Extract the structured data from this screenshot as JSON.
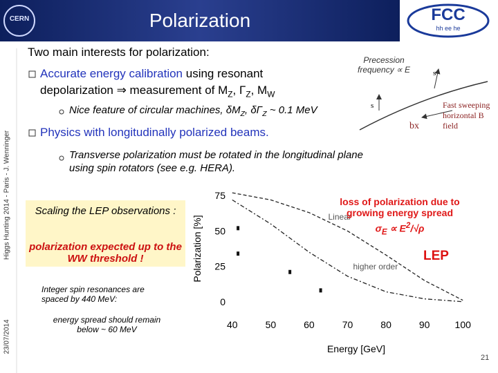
{
  "header": {
    "title": "Polarization",
    "logo_left": "CERN",
    "logo_right": "FCC",
    "logo_right_sub": "hh ee he"
  },
  "sidebar": {
    "event": "Higgs Hunting 2014 - Paris - J. Wenninger",
    "date": "23/07/2014"
  },
  "intro": "Two main interests for polarization:",
  "bullets": [
    {
      "runs": [
        {
          "text": "Accurate energy calibration",
          "color": "#2233bb"
        },
        {
          "text": " using resonant depolarization ⇒ measurement of M"
        },
        {
          "text": "Z",
          "sub": true
        },
        {
          "text": ", Γ"
        },
        {
          "text": "Z",
          "sub": true
        },
        {
          "text": ", M"
        },
        {
          "text": "W",
          "sub": true
        }
      ],
      "sub": {
        "runs": [
          {
            "text": "Nice feature of circular machines, δM"
          },
          {
            "text": "Z",
            "sub": true
          },
          {
            "text": ", δΓ"
          },
          {
            "text": "Z",
            "sub": true
          },
          {
            "text": " ~ 0.1 MeV"
          }
        ]
      }
    },
    {
      "runs": [
        {
          "text": "Physics with longitudinally polarized beams.",
          "color": "#2233bb"
        }
      ],
      "sub": {
        "runs": [
          {
            "text": "Transverse polarization must be rotated in the longitudinal plane using spin rotators (see e.g. HERA)."
          }
        ]
      }
    }
  ],
  "precession": {
    "caption": "Precession frequency ∝ E",
    "spin": "s",
    "field": "Fast sweeping horizontal B field",
    "bx": "bx"
  },
  "box": {
    "scaling": "Scaling the LEP observations :",
    "expected": "polarization expected up to the WW threshold !"
  },
  "notes": [
    "Integer spin resonances are spaced by 440 MeV:",
    "energy spread should remain below ~ 60 MeV"
  ],
  "page_number": "21",
  "chart_data": {
    "type": "line",
    "x_label": "Energy [GeV]",
    "y_label": "Polarization [%]",
    "annotation": "loss of polarization due to growing energy spread",
    "formula": [
      {
        "text": "σ"
      },
      {
        "text": "E",
        "sub": true
      },
      {
        "text": " ∝ E"
      },
      {
        "text": "2",
        "sup": true
      },
      {
        "text": "/√ρ"
      }
    ],
    "tag": "LEP",
    "x": [
      40,
      50,
      60,
      70,
      80,
      90,
      100
    ],
    "series": [
      {
        "name": "Linear",
        "color": "#222222",
        "values": [
          77,
          72,
          63,
          50,
          33,
          15,
          1
        ]
      },
      {
        "name": "higher order",
        "color": "#222222",
        "values": [
          72,
          55,
          35,
          18,
          7,
          2,
          0
        ]
      }
    ],
    "points_x": [
      41.5,
      41.5,
      55,
      63
    ],
    "points_y": [
      52,
      34,
      21,
      8
    ],
    "xlim": [
      35,
      105
    ],
    "ylim": [
      -5,
      80
    ],
    "xticks": [
      40,
      50,
      60,
      70,
      80,
      90,
      100
    ],
    "yticks": [
      0,
      25,
      50,
      75
    ]
  }
}
